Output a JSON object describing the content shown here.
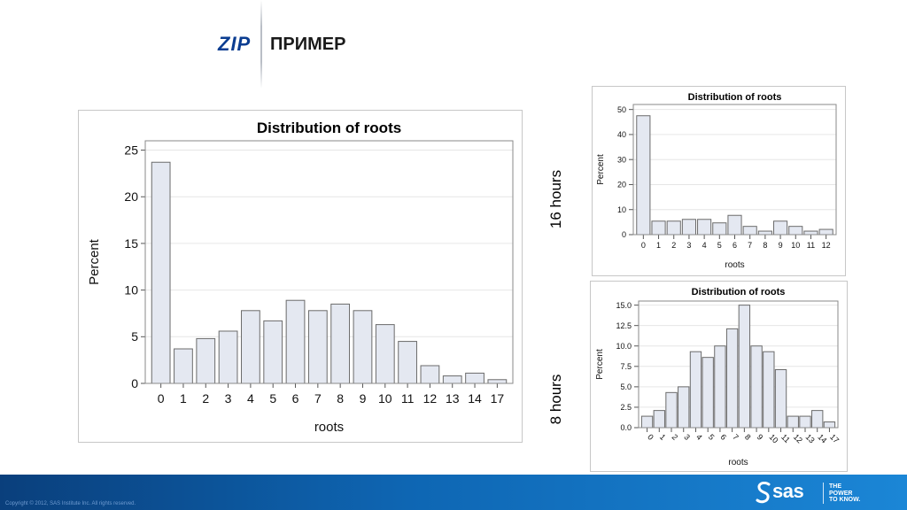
{
  "header": {
    "logo": "ZIP",
    "title": "ПРИМЕР"
  },
  "side_labels": {
    "top": "16 hours",
    "bottom": "8 hours"
  },
  "footer": {
    "copyright": "Copyright © 2012, SAS Institute Inc. All rights reserved.",
    "brand": "sas",
    "tagline_1": "THE",
    "tagline_2": "POWER",
    "tagline_3": "TO KNOW."
  },
  "colors": {
    "bar_fill": "#e4e8f1",
    "bar_stroke": "#6b6b6b",
    "grid": "#e6e6e6",
    "footer": "#0e66b3"
  },
  "chart_data": [
    {
      "type": "bar",
      "title": "Distribution of roots",
      "xlabel": "roots",
      "ylabel": "Percent",
      "categories": [
        "0",
        "1",
        "2",
        "3",
        "4",
        "5",
        "6",
        "7",
        "8",
        "9",
        "10",
        "11",
        "12",
        "13",
        "14",
        "17"
      ],
      "values": [
        23.7,
        3.7,
        4.8,
        5.6,
        7.8,
        6.7,
        8.9,
        7.8,
        8.5,
        7.8,
        6.3,
        4.5,
        1.9,
        0.8,
        1.1,
        0.4
      ],
      "ylim": [
        0,
        26
      ],
      "yticks": [
        "0",
        "5",
        "10",
        "15",
        "20",
        "25"
      ],
      "grid": true
    },
    {
      "type": "bar",
      "title": "Distribution of roots",
      "xlabel": "roots",
      "ylabel": "Percent",
      "categories": [
        "0",
        "1",
        "2",
        "3",
        "4",
        "5",
        "6",
        "7",
        "8",
        "9",
        "10",
        "11",
        "12"
      ],
      "values": [
        47.5,
        5.4,
        5.4,
        6.1,
        6.1,
        4.7,
        7.7,
        3.3,
        1.4,
        5.4,
        3.3,
        1.4,
        2.1
      ],
      "ylim": [
        0,
        52
      ],
      "yticks": [
        "0",
        "10",
        "20",
        "30",
        "40",
        "50"
      ],
      "grid": true
    },
    {
      "type": "bar",
      "title": "Distribution of roots",
      "xlabel": "roots",
      "ylabel": "Percent",
      "categories": [
        "0",
        "1",
        "2",
        "3",
        "4",
        "5",
        "6",
        "7",
        "8",
        "9",
        "10",
        "11",
        "12",
        "13",
        "14",
        "17"
      ],
      "values": [
        1.4,
        2.1,
        4.3,
        5.0,
        9.3,
        8.6,
        10.0,
        12.1,
        15.0,
        10.0,
        9.3,
        7.1,
        1.4,
        1.4,
        2.1,
        0.7
      ],
      "ylim": [
        0,
        15.5
      ],
      "yticks": [
        "0.0",
        "2.5",
        "5.0",
        "7.5",
        "10.0",
        "12.5",
        "15.0"
      ],
      "grid": true
    }
  ]
}
